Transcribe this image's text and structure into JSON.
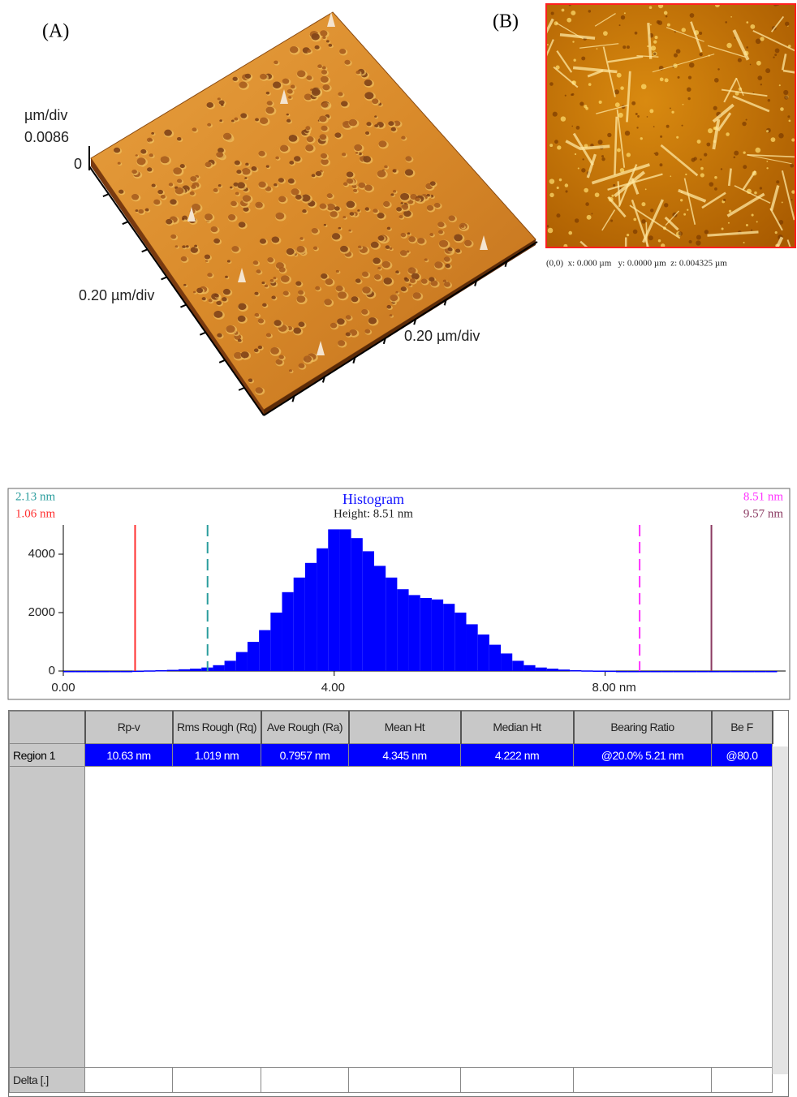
{
  "panel_a": {
    "label": "(A)",
    "z_unit": "µm/div",
    "z_max": "0.0086",
    "z_min": "0",
    "y_scale": "0.20 µm/div",
    "x_scale": "0.20 µm/div"
  },
  "panel_b": {
    "label": "(B)",
    "status": "(0,0)  x: 0.000 µm   y: 0.0000 µm  z: 0.004325 µm"
  },
  "chart_data": {
    "type": "histogram",
    "title": "Histogram",
    "subtitle": "Height: 8.51 nm",
    "color": "#0000ff",
    "bins": [
      0,
      0.17,
      0.34,
      0.51,
      0.68,
      0.85,
      1.02,
      1.19,
      1.36,
      1.53,
      1.7,
      1.87,
      2.04,
      2.21,
      2.38,
      2.55,
      2.72,
      2.89,
      3.06,
      3.23,
      3.4,
      3.57,
      3.74,
      3.91,
      4.08,
      4.25,
      4.42,
      4.59,
      4.76,
      4.93,
      5.1,
      5.27,
      5.44,
      5.61,
      5.78,
      5.95,
      6.12,
      6.29,
      6.46,
      6.63,
      6.8,
      6.97,
      7.14,
      7.31,
      7.48,
      7.65,
      7.82,
      7.99,
      8.16,
      8.33,
      8.5,
      8.67,
      8.84,
      9.01,
      9.18,
      9.35,
      9.52,
      9.69,
      9.86,
      10.03,
      10.2,
      10.37,
      10.54
    ],
    "values": [
      0,
      0,
      0,
      0,
      0,
      0,
      10,
      20,
      30,
      40,
      60,
      80,
      120,
      200,
      350,
      650,
      1000,
      1400,
      2000,
      2700,
      3200,
      3700,
      4200,
      4850,
      4850,
      4550,
      4100,
      3600,
      3200,
      2800,
      2600,
      2500,
      2450,
      2300,
      2000,
      1600,
      1250,
      900,
      600,
      350,
      200,
      120,
      80,
      50,
      30,
      20,
      15,
      10,
      0,
      0,
      0,
      0,
      0,
      0,
      0,
      0,
      0,
      0,
      0,
      0,
      0,
      0
    ],
    "xlim": [
      0,
      10.63
    ],
    "xticks": [
      {
        "value": 0,
        "label": "0.00"
      },
      {
        "value": 4,
        "label": "4.00"
      },
      {
        "value": 8,
        "label": "8.00 nm"
      }
    ],
    "ylim": [
      0,
      5000
    ],
    "yticks": [
      0,
      2000,
      4000
    ],
    "cursors": [
      {
        "label": "2.13 nm",
        "value": 2.13,
        "color": "#2a9d9d",
        "dashed": true
      },
      {
        "label": "1.06 nm",
        "value": 1.06,
        "color": "#ff3030",
        "dashed": false
      },
      {
        "label": "8.51 nm",
        "value": 8.51,
        "color": "#ff33ff",
        "dashed": true
      },
      {
        "label": "9.57 nm",
        "value": 9.57,
        "color": "#8b3a62",
        "dashed": false
      }
    ]
  },
  "table": {
    "headers": [
      "Rp-v",
      "Rms Rough (Rq)",
      "Ave Rough (Ra)",
      "Mean Ht",
      "Median Ht",
      "Bearing Ratio",
      "Be F"
    ],
    "rows": [
      [
        "Region 1",
        "10.63 nm",
        "1.019 nm",
        "0.7957 nm",
        "4.345 nm",
        "4.222 nm",
        "@20.0% 5.21 nm",
        "@80.0"
      ]
    ],
    "footer": "Delta [.]"
  }
}
